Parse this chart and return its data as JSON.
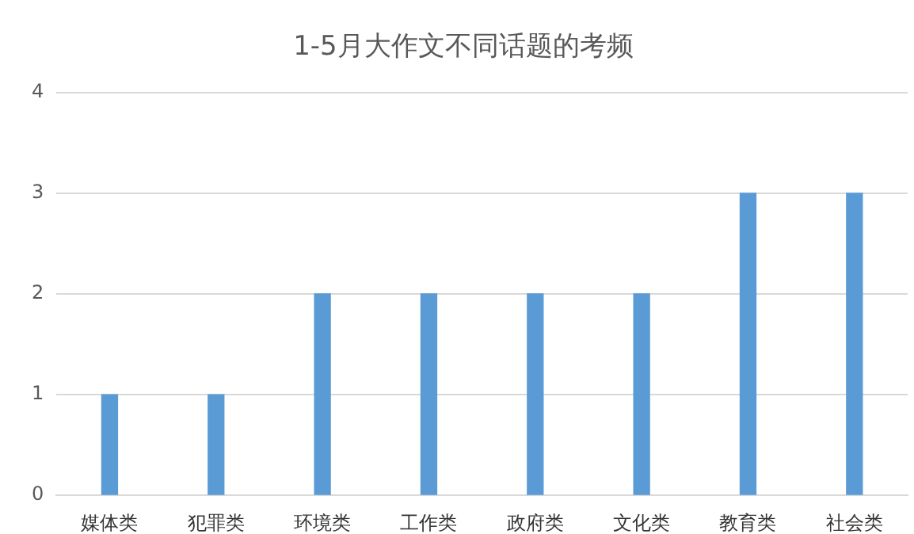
{
  "chart_data": {
    "type": "bar",
    "title": "1-5月大作文不同话题的考频",
    "categories": [
      "媒体类",
      "犯罪类",
      "环境类",
      "工作类",
      "政府类",
      "文化类",
      "教育类",
      "社会类"
    ],
    "values": [
      1,
      1,
      2,
      2,
      2,
      2,
      3,
      3
    ],
    "color": "#5b9bd5",
    "ylim": [
      0,
      4
    ],
    "yticks": [
      0,
      1,
      2,
      3,
      4
    ],
    "grid": "y",
    "legend": false
  }
}
